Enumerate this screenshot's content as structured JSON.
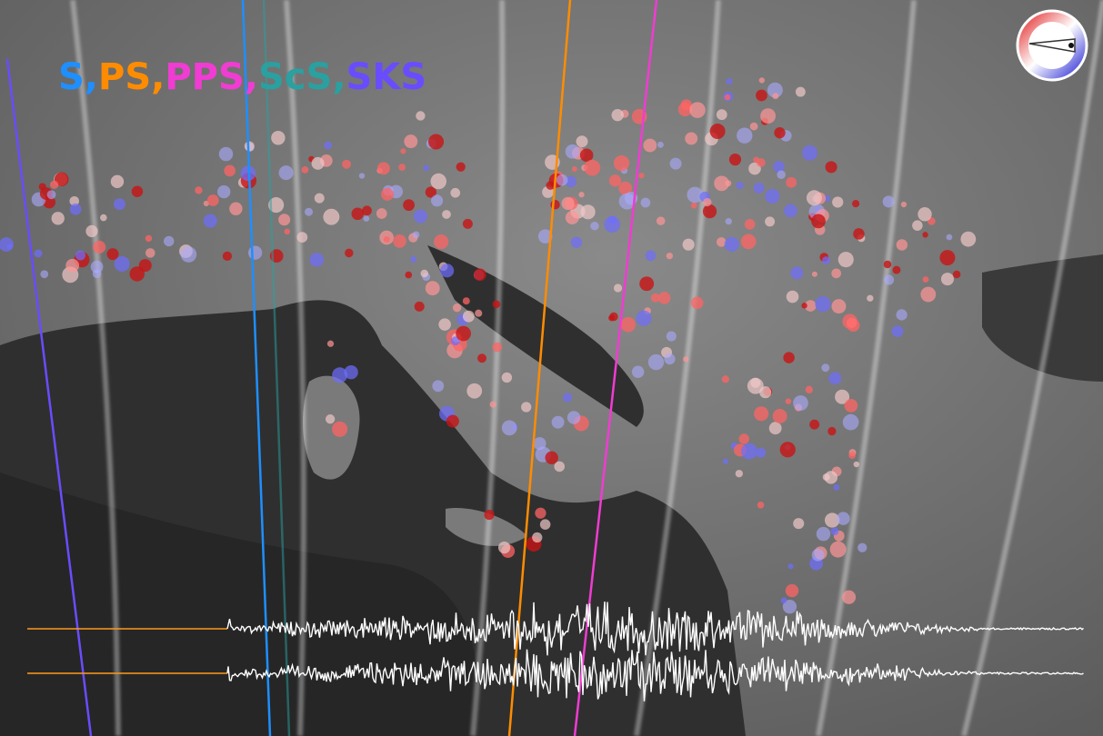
{
  "legend": {
    "phases": [
      {
        "label": "S,",
        "color": "#1e8fff"
      },
      {
        "label": "PS,",
        "color": "#ff8c00"
      },
      {
        "label": "PPS,",
        "color": "#f03cd2"
      },
      {
        "label": "ScS,",
        "color": "#2aa0a0"
      },
      {
        "label": "SKS",
        "color": "#6a4cff"
      }
    ]
  }
}
